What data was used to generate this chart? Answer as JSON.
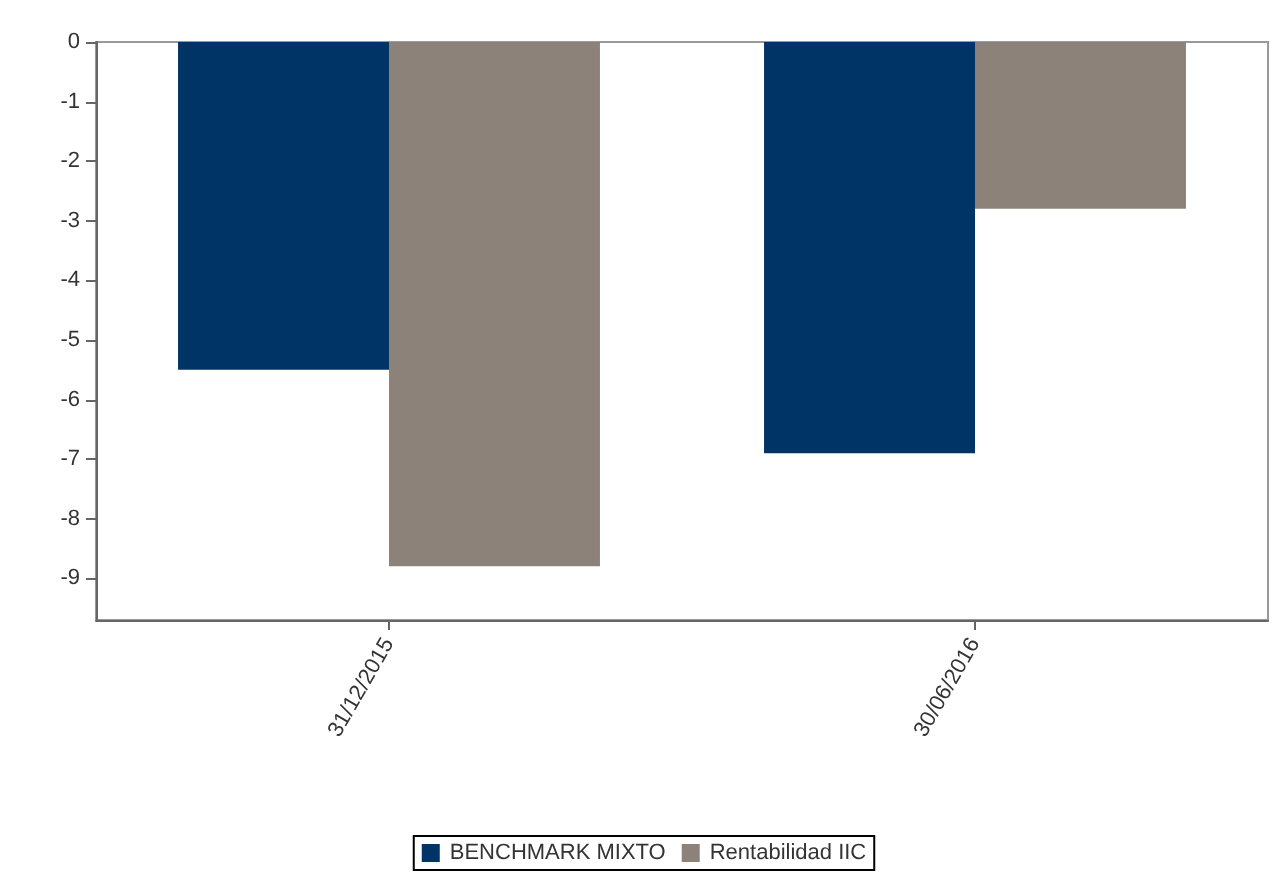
{
  "chart_data": {
    "type": "bar",
    "categories": [
      "31/12/2015",
      "30/06/2016"
    ],
    "series": [
      {
        "name": "BENCHMARK MIXTO",
        "color": "#003366",
        "values": [
          -5.5,
          -6.9
        ]
      },
      {
        "name": "Rentabilidad IIC",
        "color": "#8c8279",
        "values": [
          -8.8,
          -2.8
        ]
      }
    ],
    "ylim": [
      -9.7,
      0
    ],
    "yticks": [
      -9,
      -8,
      -7,
      -6,
      -5,
      -4,
      -3,
      -2,
      -1,
      0
    ],
    "legend": "bottom"
  }
}
